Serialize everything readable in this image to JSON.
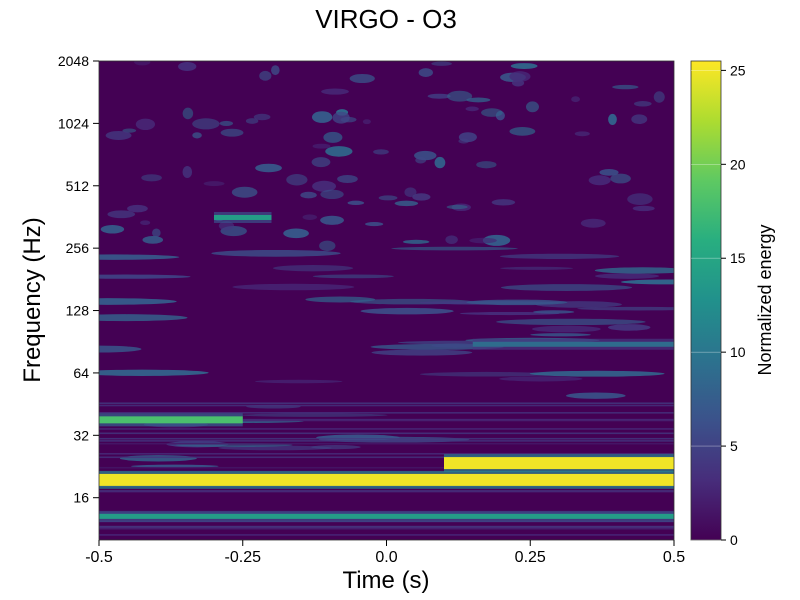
{
  "chart_data": {
    "type": "heatmap",
    "title": "VIRGO - O3",
    "xlabel": "Time (s)",
    "ylabel": "Frequency (Hz)",
    "xlim": [
      -0.5,
      0.5
    ],
    "ylim": [
      10,
      2048
    ],
    "y_scale": "log2",
    "x_ticks": [
      -0.5,
      -0.25,
      0.0,
      0.25,
      0.5
    ],
    "x_tick_labels": [
      "-0.5",
      "-0.25",
      "0.0",
      "0.25",
      "0.5"
    ],
    "y_ticks": [
      16,
      32,
      64,
      128,
      256,
      512,
      1024,
      2048
    ],
    "y_tick_labels": [
      "16",
      "32",
      "64",
      "128",
      "256",
      "512",
      "1024",
      "2048"
    ],
    "colorbar": {
      "label": "Normalized energy",
      "range": [
        0,
        25.5
      ],
      "ticks": [
        0,
        5,
        10,
        15,
        20,
        25
      ],
      "tick_labels": [
        "0",
        "5",
        "10",
        "15",
        "20",
        "25"
      ],
      "colormap": "viridis"
    },
    "features": [
      {
        "t_start": -0.5,
        "t_end": 0.5,
        "freq": 19.5,
        "energy": 25
      },
      {
        "t_start": 0.1,
        "t_end": 0.5,
        "freq": 23.5,
        "energy": 25
      },
      {
        "t_start": -0.5,
        "t_end": -0.25,
        "freq": 38,
        "energy": 18
      },
      {
        "t_start": -0.5,
        "t_end": 0.5,
        "freq": 13,
        "energy": 14
      },
      {
        "t_start": 0.15,
        "t_end": 0.5,
        "freq": 88,
        "energy": 9
      },
      {
        "t_start": -0.3,
        "t_end": -0.2,
        "freq": 360,
        "energy": 14
      }
    ]
  }
}
